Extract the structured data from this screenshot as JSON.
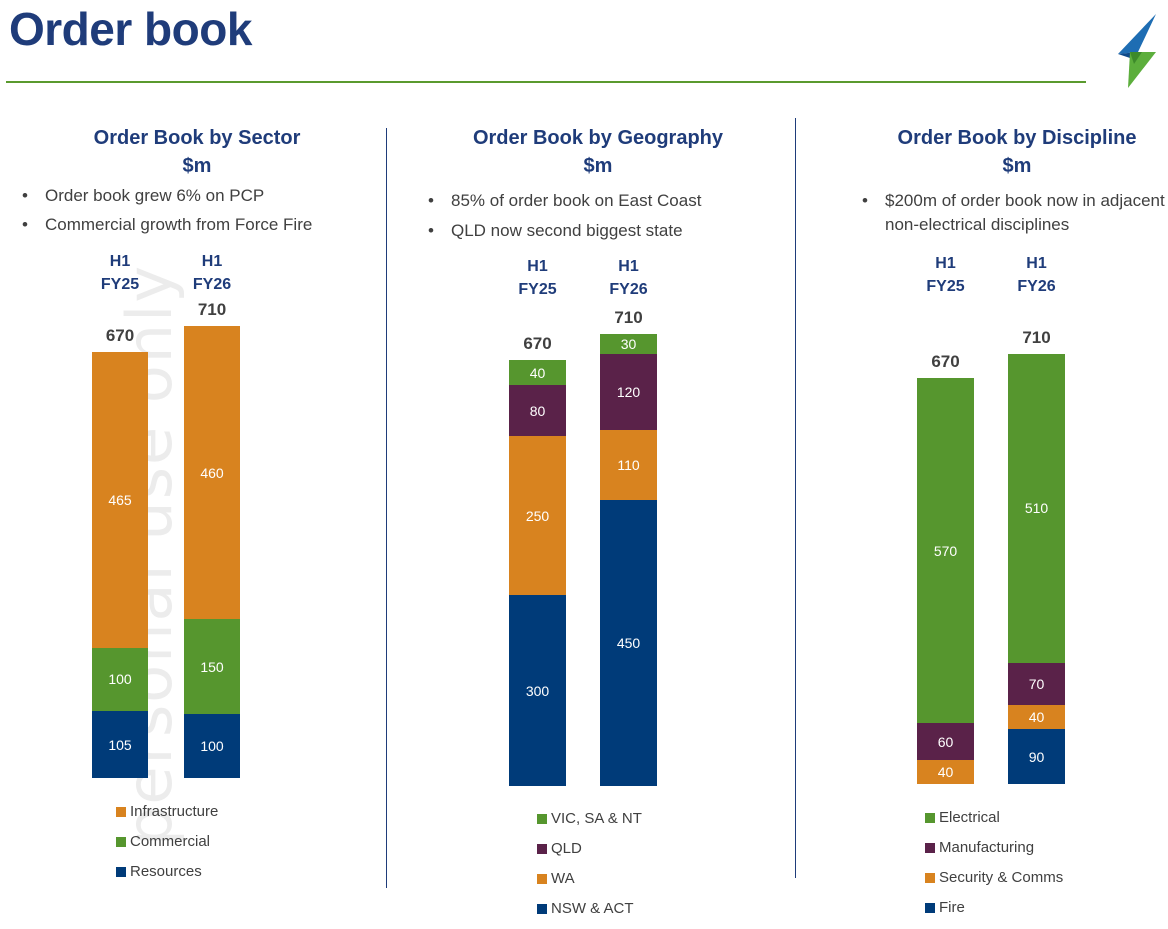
{
  "page": {
    "title": "Order book"
  },
  "watermark": "personal use only",
  "colors": {
    "infrastructure": "#d8831f",
    "commercial": "#56962e",
    "resources": "#003b79",
    "qld": "#5a2249",
    "title": "#1f3c7a"
  },
  "panels": [
    {
      "title_line1": "Order Book by Sector",
      "title_line2": "$m",
      "bullets": [
        "Order book grew 6% on PCP",
        "Commercial growth from Force Fire"
      ]
    },
    {
      "title_line1": "Order Book by Geography",
      "title_line2": "$m",
      "bullets": [
        "85% of order book on East Coast",
        "QLD now second biggest state"
      ]
    },
    {
      "title_line1": "Order Book by Discipline",
      "title_line2": "$m",
      "bullets": [
        "$200m of order book now in adjacent non-electrical disciplines"
      ]
    }
  ],
  "chart_data": [
    {
      "type": "bar",
      "stacked": true,
      "title": "Order Book by Sector",
      "ylabel": "$m",
      "categories": [
        "H1 FY25",
        "H1 FY26"
      ],
      "totals": [
        670,
        710
      ],
      "series": [
        {
          "name": "Resources",
          "color": "#003b79",
          "values": [
            105,
            100
          ]
        },
        {
          "name": "Commercial",
          "color": "#56962e",
          "values": [
            100,
            150
          ]
        },
        {
          "name": "Infrastructure",
          "color": "#d8831f",
          "values": [
            465,
            460
          ]
        }
      ],
      "legend_order": [
        "Infrastructure",
        "Commercial",
        "Resources"
      ],
      "legend_position": "bottom"
    },
    {
      "type": "bar",
      "stacked": true,
      "title": "Order Book by Geography",
      "ylabel": "$m",
      "categories": [
        "H1 FY25",
        "H1 FY26"
      ],
      "totals": [
        670,
        710
      ],
      "series": [
        {
          "name": "NSW & ACT",
          "color": "#003b79",
          "values": [
            300,
            450
          ]
        },
        {
          "name": "WA",
          "color": "#d8831f",
          "values": [
            250,
            110
          ]
        },
        {
          "name": "QLD",
          "color": "#5a2249",
          "values": [
            80,
            120
          ]
        },
        {
          "name": "VIC, SA & NT",
          "color": "#56962e",
          "values": [
            40,
            30
          ]
        }
      ],
      "legend_order": [
        "VIC, SA & NT",
        "QLD",
        "WA",
        "NSW & ACT"
      ],
      "legend_position": "bottom"
    },
    {
      "type": "bar",
      "stacked": true,
      "title": "Order Book by Discipline",
      "ylabel": "$m",
      "categories": [
        "H1 FY25",
        "H1 FY26"
      ],
      "totals": [
        670,
        710
      ],
      "series": [
        {
          "name": "Fire",
          "color": "#003b79",
          "values": [
            0,
            90
          ]
        },
        {
          "name": "Security & Comms",
          "color": "#d8831f",
          "values": [
            40,
            40
          ]
        },
        {
          "name": "Manufacturing",
          "color": "#5a2249",
          "values": [
            60,
            70
          ]
        },
        {
          "name": "Electrical",
          "color": "#56962e",
          "values": [
            570,
            510
          ]
        }
      ],
      "legend_order": [
        "Electrical",
        "Manufacturing",
        "Security & Comms",
        "Fire"
      ],
      "legend_position": "bottom"
    }
  ]
}
